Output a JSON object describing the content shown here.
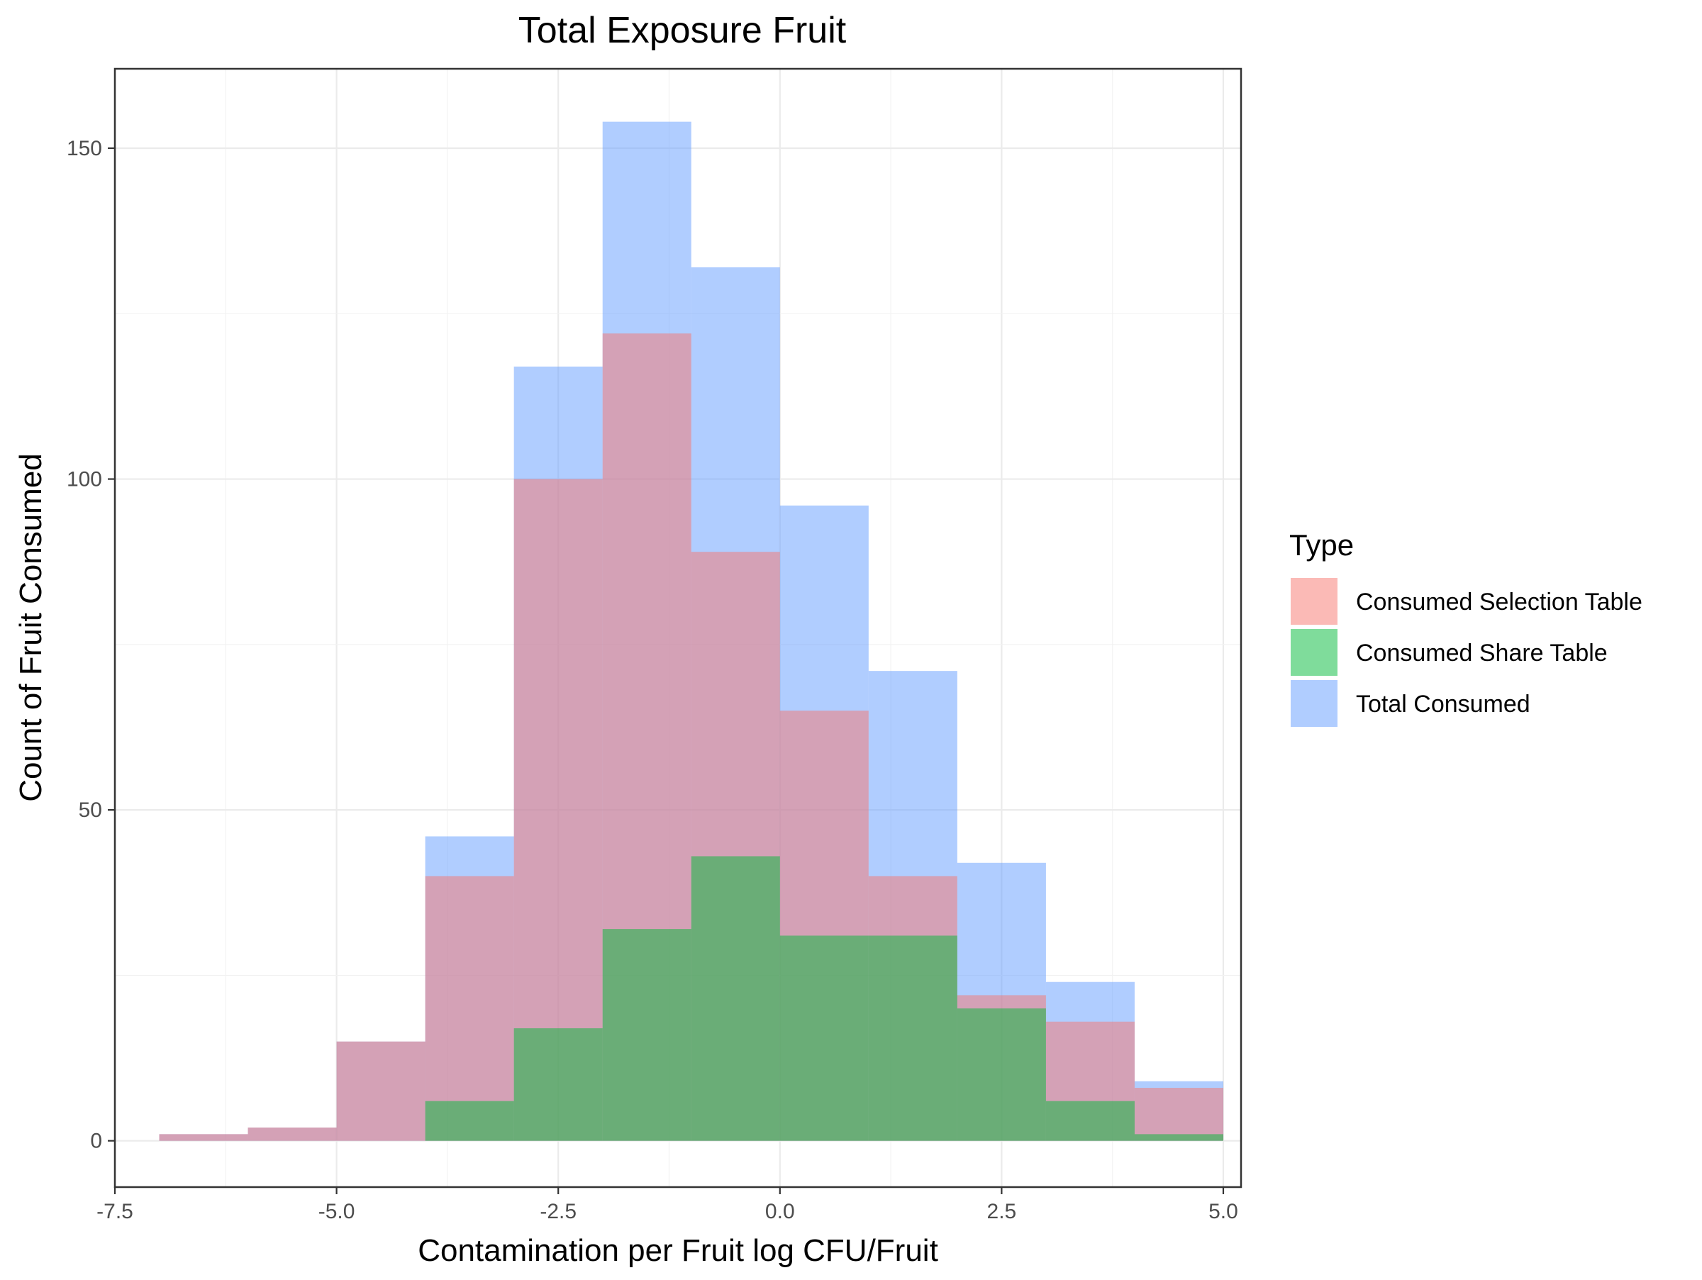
{
  "chart_data": {
    "type": "bar",
    "subtype": "overlapping histogram",
    "title": "Total Exposure Fruit",
    "xlabel": "Contamination per Fruit log CFU/Fruit",
    "ylabel": "Count of Fruit Consumed",
    "xlim": [
      -7.5,
      5.2
    ],
    "ylim": [
      -7,
      162
    ],
    "x_ticks": [
      -7.5,
      -5.0,
      -2.5,
      0.0,
      2.5,
      5.0
    ],
    "x_tick_labels": [
      "-7.5",
      "-5.0",
      "-2.5",
      "0.0",
      "2.5",
      "5.0"
    ],
    "y_ticks": [
      0,
      50,
      100,
      150
    ],
    "y_tick_labels": [
      "0",
      "50",
      "100",
      "150"
    ],
    "grid": true,
    "bin_edges": [
      -7,
      -6,
      -5,
      -4,
      -3,
      -2,
      -1,
      0,
      1,
      2,
      3,
      4,
      5
    ],
    "legend": {
      "title": "Type",
      "position": "right"
    },
    "series": [
      {
        "name": "Total Consumed",
        "color": "#619CFF",
        "values": [
          1,
          2,
          15,
          46,
          117,
          154,
          132,
          96,
          71,
          42,
          24,
          9
        ]
      },
      {
        "name": "Consumed Selection Table",
        "color": "#F8766D",
        "values": [
          1,
          2,
          15,
          40,
          100,
          122,
          89,
          65,
          40,
          22,
          18,
          8
        ]
      },
      {
        "name": "Consumed Share Table",
        "color": "#00BA38",
        "values": [
          0,
          0,
          0,
          6,
          17,
          32,
          43,
          31,
          31,
          20,
          6,
          1
        ]
      }
    ],
    "legend_order": [
      "Consumed Selection Table",
      "Consumed Share Table",
      "Total Consumed"
    ],
    "opacity": 0.5
  }
}
